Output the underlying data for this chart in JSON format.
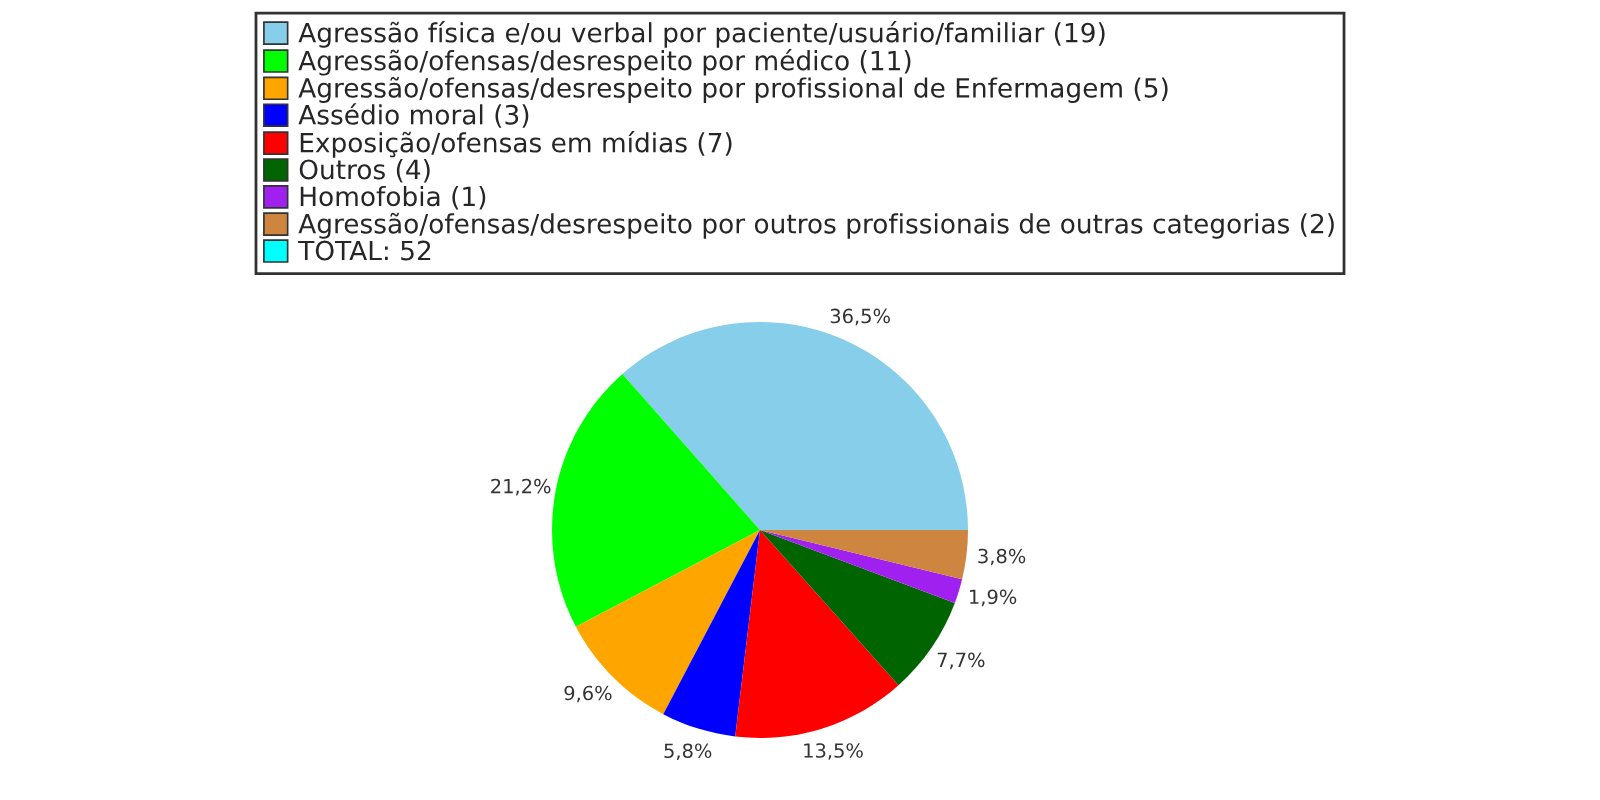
{
  "chart_data": {
    "type": "pie",
    "categories": [
      "Agressão física e/ou verbal por paciente/usuário/familiar (19)",
      "Agressão/ofensas/desrespeito por médico (11)",
      "Agressão/ofensas/desrespeito por profissional de Enfermagem (5)",
      "Assédio moral (3)",
      "Exposição/ofensas em mídias (7)",
      "Outros (4)",
      "Homofobia (1)",
      "Agressão/ofensas/desrespeito por outros profissionais de outras categorias (2)"
    ],
    "values": [
      36.5,
      21.2,
      9.6,
      5.8,
      13.5,
      7.7,
      1.9,
      3.8
    ],
    "value_labels": [
      "36,5%",
      "21,2%",
      "9,6%",
      "5,8%",
      "13,5%",
      "7,7%",
      "1,9%",
      "3,8%"
    ],
    "colors": [
      "#87ceeb",
      "#00ff00",
      "#ffa500",
      "#0000ff",
      "#ff0000",
      "#006400",
      "#a020f0",
      "#cd853f"
    ],
    "annotations": [
      "TOTAL: 52"
    ],
    "legend": "top"
  }
}
